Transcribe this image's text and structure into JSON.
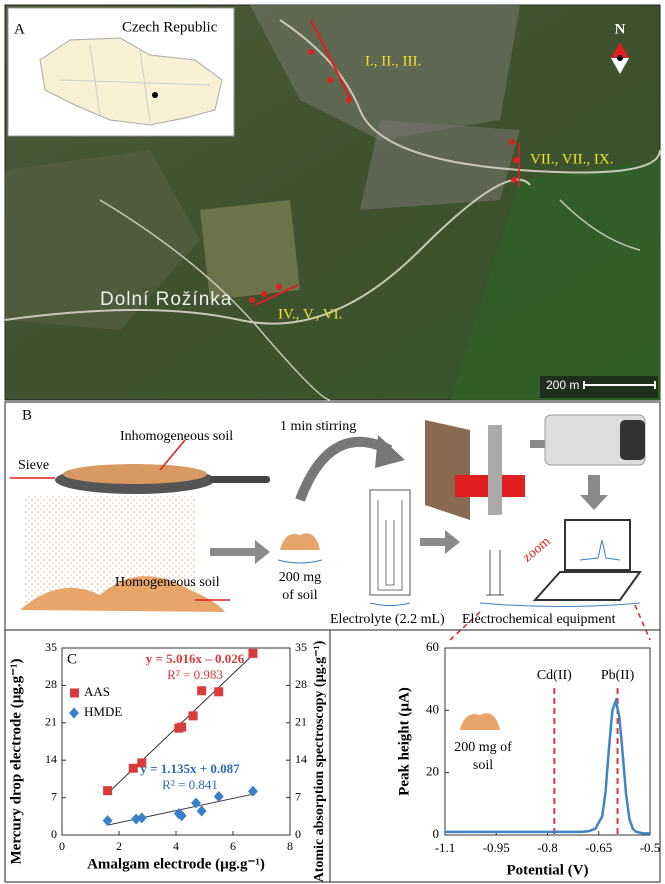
{
  "figure": {
    "panel_a": {
      "label": "A",
      "inset_title": "Czech Republic",
      "north": "N",
      "site_1": "I., II., III.",
      "site_2": "VII., VII., IX.",
      "site_3": "IV., V., VI.",
      "village": "Dolní Rožínka",
      "scale": "200 m"
    },
    "panel_b": {
      "label": "B",
      "sieve": "Sieve",
      "inhomogeneous": "Inhomogeneous soil",
      "homogeneous": "Homogeneous soil",
      "sample": [
        "200 mg",
        "of soil"
      ],
      "stirring": "1 min stirring",
      "electrolyte": "Electrolyte (2.2 mL)",
      "equipment": "Electrochemical equipment",
      "zoom": "zoom"
    }
  },
  "chart_data": [
    {
      "type": "scatter",
      "panel_label": "C",
      "xlabel": "Amalgam electrode (µg.g⁻¹)",
      "ylabel": "Mercury drop electrode (µg.g⁻¹)",
      "y2label": "Atomic absorption spectroscopy (µg.g⁻¹)",
      "xlim": [
        0,
        8
      ],
      "xticks": [
        0,
        2,
        4,
        6,
        8
      ],
      "ylim": [
        0,
        35
      ],
      "yticks": [
        0,
        7,
        14,
        21,
        28,
        35
      ],
      "y2lim": [
        0,
        35
      ],
      "y2ticks": [
        0,
        7,
        14,
        21,
        28,
        35
      ],
      "legend": "top-left",
      "trendline": true,
      "series": [
        {
          "name": "AAS",
          "color": "#d93a3a",
          "marker": "square",
          "axis": "y2",
          "x": [
            1.6,
            2.5,
            2.8,
            4.1,
            4.2,
            4.6,
            4.9,
            5.5,
            6.7
          ],
          "values": [
            8.3,
            12.5,
            13.5,
            20,
            20.2,
            22.3,
            27,
            26.8,
            34
          ]
        },
        {
          "name": "HMDE",
          "color": "#3a7fc9",
          "marker": "diamond",
          "x": [
            1.6,
            2.6,
            2.8,
            4.1,
            4.2,
            4.7,
            4.9,
            5.5,
            6.7
          ],
          "values": [
            2.7,
            3,
            3.2,
            4,
            3.6,
            6,
            4.5,
            7.2,
            8.2
          ]
        }
      ],
      "annotations": [
        {
          "text": "y = 5.016x – 0.026",
          "color": "#d93a3a"
        },
        {
          "text": "R² = 0.983",
          "color": "#d93a3a"
        },
        {
          "text": "y = 1.135x + 0.087",
          "color": "#2b6cb0"
        },
        {
          "text": "R² = 0.841",
          "color": "#2b6cb0"
        }
      ]
    },
    {
      "type": "line",
      "xlabel": "Potential (V)",
      "ylabel": "Peak height (µA)",
      "xlim": [
        -1.1,
        -0.5
      ],
      "xticks": [
        -1.1,
        -0.95,
        -0.8,
        -0.65,
        -0.5
      ],
      "ylim": [
        0,
        60
      ],
      "yticks": [
        0,
        20,
        40,
        60
      ],
      "x": [
        -1.1,
        -1.0,
        -0.9,
        -0.8,
        -0.7,
        -0.68,
        -0.66,
        -0.64,
        -0.63,
        -0.62,
        -0.61,
        -0.6,
        -0.59,
        -0.58,
        -0.57,
        -0.56,
        -0.55,
        -0.54,
        -0.52,
        -0.5
      ],
      "series": [
        {
          "color": "#3d85c6",
          "values": [
            1,
            1,
            1,
            1,
            1,
            1.2,
            2,
            6,
            14,
            28,
            40,
            43,
            38,
            26,
            13,
            5,
            2,
            1,
            0.5,
            0.5
          ]
        }
      ],
      "markers": [
        {
          "label": "Cd(II)",
          "x": -0.78,
          "color": "#d93a3a"
        },
        {
          "label": "Pb(II)",
          "x": -0.595,
          "color": "#d93a3a"
        }
      ],
      "inset_label": [
        "200 mg of",
        "soil"
      ]
    }
  ]
}
